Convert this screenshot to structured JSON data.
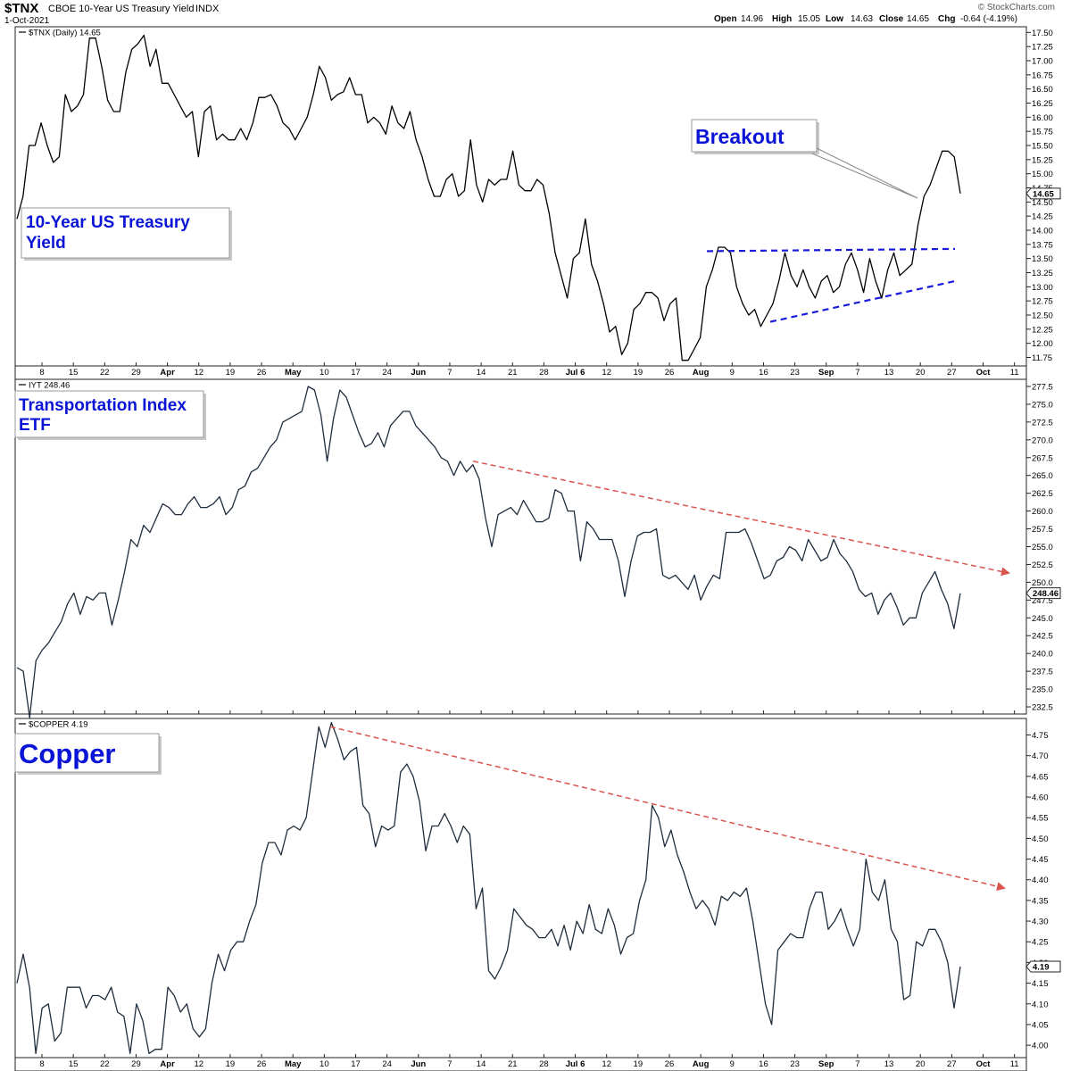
{
  "header": {
    "symbol": "$TNX",
    "description": "CBOE 10-Year US Treasury Yield",
    "exchange": "INDX",
    "date": "1-Oct-2021",
    "watermark": "© StockCharts.com",
    "ohlc": [
      {
        "label": "Open",
        "value": "14.96"
      },
      {
        "label": "High",
        "value": "15.05"
      },
      {
        "label": "Low",
        "value": "14.63"
      },
      {
        "label": "Close",
        "value": "14.65"
      },
      {
        "label": "Chg",
        "value": "-0.64 (-4.19%)"
      }
    ]
  },
  "x_tick_labels": [
    "8",
    "15",
    "22",
    "29",
    "Apr",
    "12",
    "19",
    "26",
    "May",
    "10",
    "17",
    "24",
    "Jun",
    "7",
    "14",
    "21",
    "28",
    "Jul 6",
    "12",
    "19",
    "26",
    "Aug",
    "9",
    "16",
    "23",
    "Sep",
    "7",
    "13",
    "20",
    "27",
    "Oct",
    "11"
  ],
  "chart_data": [
    {
      "type": "line",
      "legend_label": "$TNX (Daily) 14.65",
      "annotation_title": "10-Year US Treasury Yield",
      "callout": "Breakout",
      "last_value_label": "14.65",
      "ylim": [
        11.6,
        17.6
      ],
      "y_ticks": [
        "11.75",
        "12.00",
        "12.25",
        "12.50",
        "12.75",
        "13.00",
        "13.25",
        "13.50",
        "13.75",
        "14.00",
        "14.25",
        "14.50",
        "14.75",
        "15.00",
        "15.25",
        "15.50",
        "15.75",
        "16.00",
        "16.25",
        "16.50",
        "16.75",
        "17.00",
        "17.25",
        "17.50"
      ],
      "color": "#000000",
      "trendline_color": "#1a1adb",
      "series": [
        {
          "values": [
            14.2,
            14.6,
            15.5,
            15.5,
            15.9,
            15.5,
            15.2,
            15.3,
            16.4,
            16.1,
            16.2,
            16.4,
            17.4,
            17.4,
            16.9,
            16.3,
            16.1,
            16.1,
            16.8,
            17.2,
            17.3,
            17.45,
            16.9,
            17.2,
            16.6,
            16.6,
            16.4,
            16.2,
            16.0,
            16.1,
            15.3,
            16.1,
            16.2,
            15.6,
            15.7,
            15.6,
            15.6,
            15.8,
            15.6,
            15.9,
            16.35,
            16.35,
            16.4,
            16.2,
            15.9,
            15.8,
            15.6,
            15.8,
            16.0,
            16.4,
            16.9,
            16.7,
            16.3,
            16.4,
            16.45,
            16.7,
            16.4,
            16.4,
            15.9,
            16.0,
            15.9,
            15.7,
            16.2,
            15.9,
            15.8,
            16.1,
            15.6,
            15.3,
            14.9,
            14.6,
            14.6,
            14.9,
            15.0,
            14.6,
            14.7,
            15.6,
            14.8,
            14.5,
            14.9,
            14.8,
            14.9,
            14.9,
            15.4,
            14.8,
            14.7,
            14.7,
            14.9,
            14.8,
            14.3,
            13.6,
            13.2,
            12.8,
            13.5,
            13.6,
            14.2,
            13.4,
            13.1,
            12.7,
            12.2,
            12.3,
            11.8,
            12.0,
            12.6,
            12.7,
            12.9,
            12.9,
            12.8,
            12.4,
            12.7,
            12.8,
            11.7,
            11.7,
            11.9,
            12.1,
            13.0,
            13.3,
            13.7,
            13.7,
            13.6,
            13.0,
            12.7,
            12.5,
            12.6,
            12.3,
            12.5,
            12.7,
            13.1,
            13.6,
            13.2,
            13.0,
            13.3,
            13.0,
            12.8,
            13.1,
            13.2,
            12.9,
            13.0,
            13.4,
            13.6,
            13.3,
            12.9,
            13.5,
            13.1,
            12.8,
            13.3,
            13.6,
            13.2,
            13.3,
            13.4,
            14.1,
            14.6,
            14.8,
            15.1,
            15.4,
            15.4,
            15.3,
            14.65
          ]
        }
      ]
    },
    {
      "type": "line",
      "legend_label": "IYT 248.46",
      "annotation_title": "Transportation Index ETF",
      "last_value_label": "248.46",
      "ylim": [
        231.5,
        278.5
      ],
      "y_ticks": [
        "232.5",
        "235.0",
        "237.5",
        "240.0",
        "242.5",
        "245.0",
        "247.5",
        "250.0",
        "252.5",
        "255.0",
        "257.5",
        "260.0",
        "262.5",
        "265.0",
        "267.5",
        "270.0",
        "272.5",
        "275.0",
        "277.5"
      ],
      "color": "#1f2d3d",
      "trendline_color": "#d9534f",
      "series": [
        {
          "values": [
            238.0,
            237.5,
            231.0,
            239.0,
            240.5,
            241.5,
            243.0,
            244.5,
            247.0,
            248.5,
            245.5,
            248.0,
            247.5,
            248.5,
            248.5,
            244.0,
            247.5,
            251.5,
            256.0,
            255.0,
            258.0,
            257.0,
            259.0,
            261.0,
            260.5,
            259.5,
            259.5,
            261.0,
            262.0,
            260.5,
            260.5,
            261.0,
            262.0,
            259.5,
            260.5,
            263.0,
            263.5,
            265.5,
            266.0,
            267.5,
            269.0,
            270.0,
            272.5,
            273.0,
            273.5,
            274.0,
            277.5,
            277.0,
            273.5,
            267.0,
            273.0,
            277.0,
            276.0,
            273.5,
            271.0,
            269.0,
            269.5,
            271.0,
            269.0,
            272.0,
            273.0,
            274.0,
            274.0,
            272.0,
            271.0,
            270.0,
            269.0,
            267.5,
            267.0,
            265.0,
            267.0,
            265.5,
            266.5,
            264.5,
            259.0,
            255.0,
            259.5,
            260.0,
            260.5,
            259.5,
            261.5,
            260.0,
            258.5,
            258.5,
            259.0,
            263.0,
            262.5,
            260.0,
            260.0,
            253.0,
            258.5,
            257.5,
            256.0,
            256.0,
            256.0,
            253.0,
            248.0,
            253.0,
            256.5,
            257.0,
            257.0,
            257.5,
            251.0,
            250.5,
            251.0,
            250.0,
            249.0,
            251.0,
            247.5,
            249.5,
            251.0,
            250.5,
            257.0,
            257.0,
            257.0,
            257.5,
            255.5,
            253.0,
            250.5,
            251.0,
            253.0,
            253.5,
            255.0,
            254.5,
            253.0,
            256.0,
            254.5,
            253.0,
            253.5,
            256.0,
            254.0,
            253.0,
            251.5,
            249.0,
            248.0,
            248.5,
            245.5,
            247.5,
            248.5,
            246.5,
            244.0,
            245.0,
            245.0,
            248.5,
            250.0,
            251.5,
            249.0,
            247.0,
            243.5,
            248.46
          ]
        }
      ]
    },
    {
      "type": "line",
      "legend_label": "$COPPER 4.19",
      "annotation_title": "Copper",
      "last_value_label": "4.19",
      "ylim": [
        3.97,
        4.79
      ],
      "y_ticks": [
        "4.00",
        "4.05",
        "4.10",
        "4.15",
        "4.20",
        "4.25",
        "4.30",
        "4.35",
        "4.40",
        "4.45",
        "4.50",
        "4.55",
        "4.60",
        "4.65",
        "4.70",
        "4.75"
      ],
      "color": "#1f2d3d",
      "trendline_color": "#d9534f",
      "series": [
        {
          "values": [
            4.15,
            4.22,
            4.14,
            3.98,
            4.09,
            4.1,
            4.01,
            4.03,
            4.14,
            4.14,
            4.14,
            4.09,
            4.12,
            4.12,
            4.11,
            4.14,
            4.08,
            4.07,
            3.98,
            4.1,
            4.06,
            3.98,
            3.99,
            3.99,
            4.14,
            4.12,
            4.08,
            4.1,
            4.04,
            4.02,
            4.04,
            4.15,
            4.22,
            4.18,
            4.23,
            4.25,
            4.25,
            4.3,
            4.34,
            4.44,
            4.49,
            4.49,
            4.46,
            4.52,
            4.53,
            4.52,
            4.55,
            4.66,
            4.77,
            4.72,
            4.78,
            4.74,
            4.69,
            4.71,
            4.72,
            4.58,
            4.56,
            4.48,
            4.53,
            4.52,
            4.53,
            4.66,
            4.68,
            4.65,
            4.59,
            4.47,
            4.53,
            4.53,
            4.56,
            4.53,
            4.49,
            4.53,
            4.51,
            4.33,
            4.38,
            4.18,
            4.16,
            4.19,
            4.23,
            4.33,
            4.31,
            4.29,
            4.28,
            4.26,
            4.26,
            4.28,
            4.24,
            4.29,
            4.23,
            4.3,
            4.27,
            4.34,
            4.28,
            4.27,
            4.33,
            4.29,
            4.22,
            4.26,
            4.27,
            4.35,
            4.4,
            4.58,
            4.55,
            4.48,
            4.52,
            4.46,
            4.42,
            4.37,
            4.33,
            4.35,
            4.33,
            4.29,
            4.36,
            4.35,
            4.37,
            4.36,
            4.38,
            4.3,
            4.2,
            4.1,
            4.05,
            4.23,
            4.25,
            4.27,
            4.26,
            4.26,
            4.33,
            4.37,
            4.37,
            4.28,
            4.3,
            4.33,
            4.28,
            4.24,
            4.28,
            4.45,
            4.37,
            4.35,
            4.4,
            4.28,
            4.25,
            4.11,
            4.12,
            4.25,
            4.24,
            4.28,
            4.28,
            4.25,
            4.2,
            4.09,
            4.19
          ]
        }
      ]
    }
  ]
}
